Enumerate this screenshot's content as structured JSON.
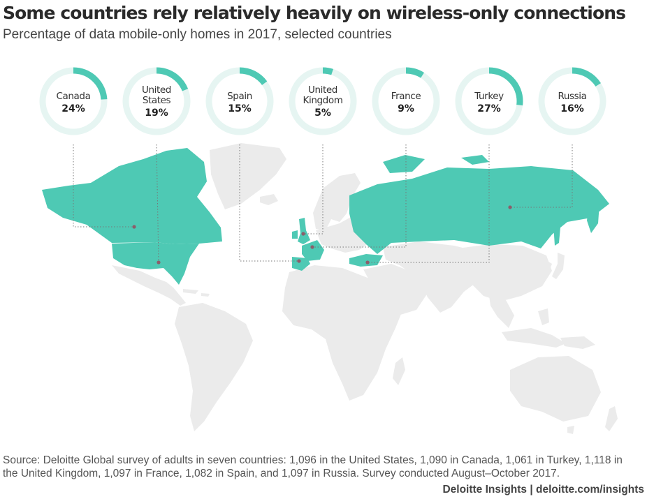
{
  "title": "Some countries rely relatively heavily on wireless-only connections",
  "subtitle": "Percentage of data mobile-only homes in 2017, selected countries",
  "colors": {
    "accent": "#4ec9b4",
    "ring_track": "#e6f5f2",
    "land": "#ebebeb",
    "connector": "#777777",
    "marker": "#8b5e6b"
  },
  "chart_data": {
    "type": "donut-map",
    "unit": "%",
    "series": [
      {
        "country": "Canada",
        "label_lines": [
          "Canada"
        ],
        "value": 24,
        "display": "24%"
      },
      {
        "country": "United States",
        "label_lines": [
          "United",
          "States"
        ],
        "value": 19,
        "display": "19%"
      },
      {
        "country": "Spain",
        "label_lines": [
          "Spain"
        ],
        "value": 15,
        "display": "15%"
      },
      {
        "country": "United Kingdom",
        "label_lines": [
          "United",
          "Kingdom"
        ],
        "value": 5,
        "display": "5%"
      },
      {
        "country": "France",
        "label_lines": [
          "France"
        ],
        "value": 9,
        "display": "9%"
      },
      {
        "country": "Turkey",
        "label_lines": [
          "Turkey"
        ],
        "value": 27,
        "display": "27%"
      },
      {
        "country": "Russia",
        "label_lines": [
          "Russia"
        ],
        "value": 16,
        "display": "16%"
      }
    ]
  },
  "source": "Source: Deloitte Global survey of adults in seven countries: 1,096 in the United States, 1,090 in Canada, 1,061 in Turkey, 1,118 in the United Kingdom, 1,097 in France, 1,082 in Spain, and 1,097 in Russia. Survey conducted August–October 2017.",
  "credit": "Deloitte Insights | deloitte.com/insights"
}
